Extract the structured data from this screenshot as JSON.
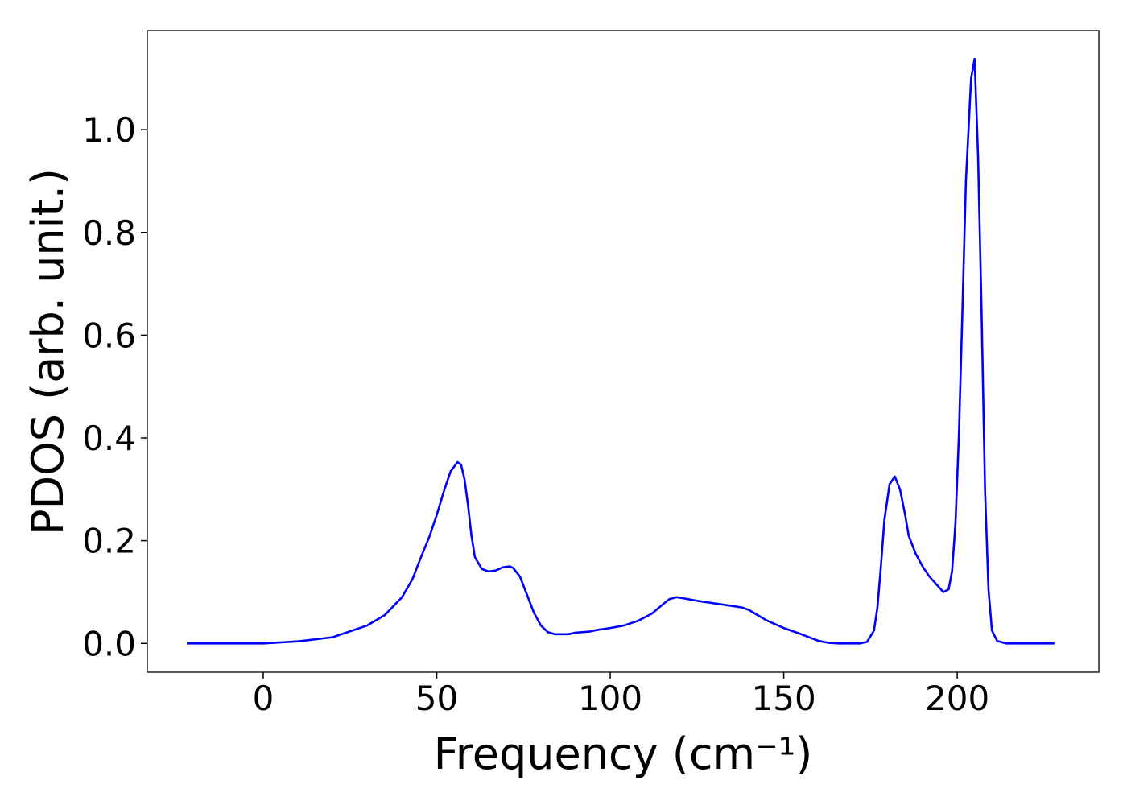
{
  "chart_data": {
    "type": "line",
    "x_label": "Frequency (cm⁻¹)",
    "y_label": "PDOS (arb. unit.)",
    "xlim": [
      -33.4,
      240.8
    ],
    "ylim": [
      -0.056,
      1.193
    ],
    "xticks": [
      0,
      50,
      100,
      150,
      200
    ],
    "yticks": [
      {
        "value": 0,
        "label": "0.0"
      },
      {
        "value": 0.2,
        "label": "0.2"
      },
      {
        "value": 0.4,
        "label": "0.4"
      },
      {
        "value": 0.6,
        "label": "0.6"
      },
      {
        "value": 0.8,
        "label": "0.8"
      },
      {
        "value": 1,
        "label": "1.0"
      }
    ],
    "x": [
      -22,
      0,
      10,
      20,
      30,
      35,
      40,
      43,
      45,
      48,
      50,
      52,
      54,
      56,
      57,
      58,
      59,
      60,
      61,
      63,
      65,
      67,
      69,
      71,
      72,
      74,
      76,
      78,
      80,
      82,
      84,
      88,
      90,
      94,
      96,
      100,
      104,
      108,
      112,
      115,
      117,
      119,
      121,
      125,
      130,
      135,
      138,
      140,
      145,
      150,
      155,
      160,
      163,
      166,
      172,
      174,
      176,
      177,
      178,
      179,
      180.5,
      182,
      183.5,
      185,
      186,
      188,
      190,
      192,
      194,
      196,
      197.5,
      198.5,
      199.5,
      200.5,
      201.5,
      202.5,
      204,
      205,
      206,
      207,
      208,
      209,
      210,
      211.5,
      214,
      228
    ],
    "series": [
      {
        "color": "#0000ff",
        "values": [
          0,
          0,
          0.004,
          0.012,
          0.035,
          0.055,
          0.09,
          0.125,
          0.16,
          0.21,
          0.25,
          0.295,
          0.335,
          0.353,
          0.348,
          0.32,
          0.27,
          0.21,
          0.168,
          0.145,
          0.14,
          0.142,
          0.148,
          0.15,
          0.147,
          0.13,
          0.095,
          0.06,
          0.035,
          0.022,
          0.018,
          0.018,
          0.021,
          0.023,
          0.026,
          0.03,
          0.035,
          0.044,
          0.058,
          0.075,
          0.086,
          0.09,
          0.088,
          0.083,
          0.078,
          0.073,
          0.07,
          0.065,
          0.045,
          0.03,
          0.018,
          0.005,
          0.001,
          0,
          0,
          0.003,
          0.025,
          0.07,
          0.15,
          0.24,
          0.31,
          0.325,
          0.3,
          0.25,
          0.21,
          0.175,
          0.15,
          0.13,
          0.115,
          0.1,
          0.105,
          0.14,
          0.235,
          0.41,
          0.65,
          0.9,
          1.1,
          1.138,
          0.95,
          0.65,
          0.3,
          0.105,
          0.025,
          0.005,
          0,
          0
        ]
      }
    ]
  }
}
